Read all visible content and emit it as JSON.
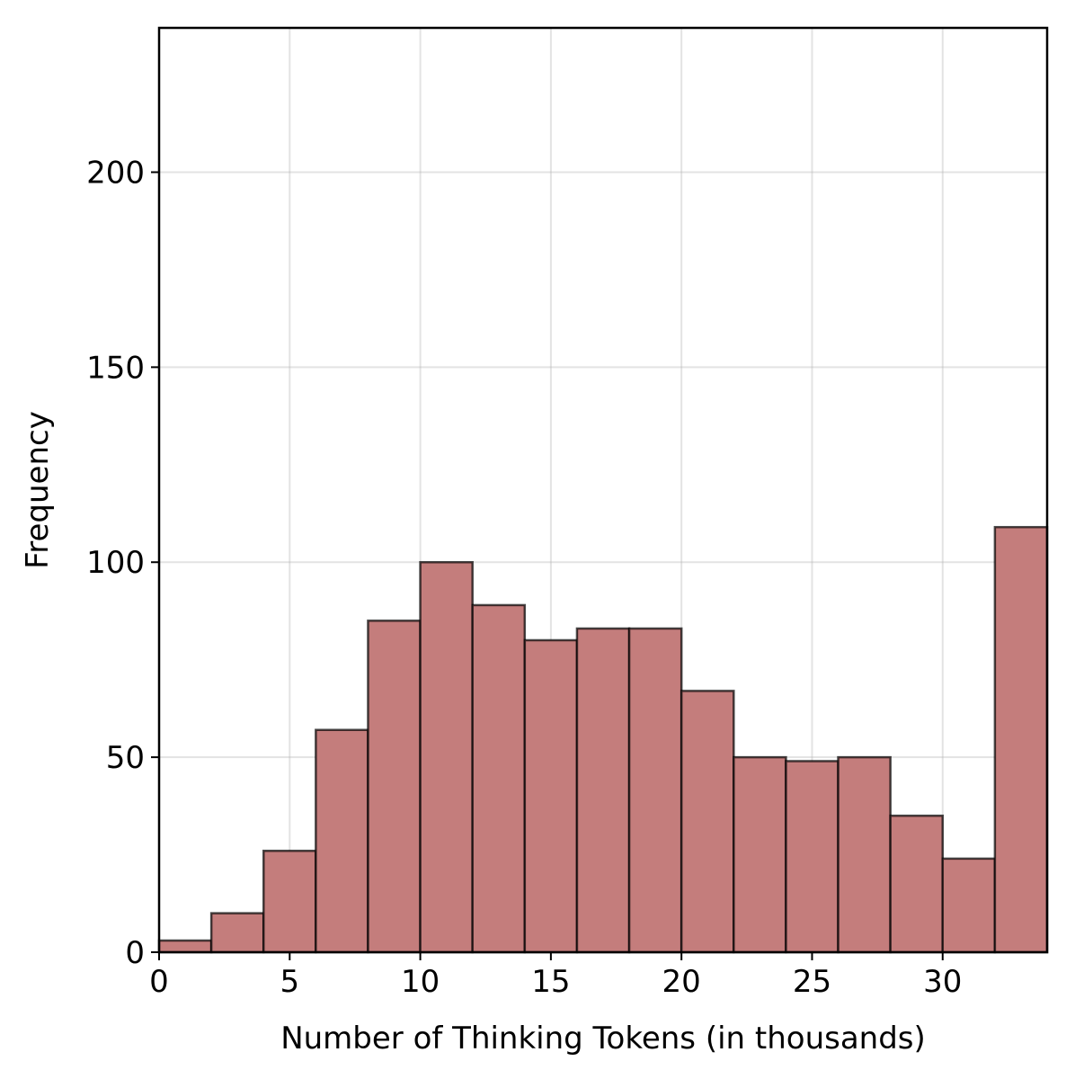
{
  "chart_data": {
    "type": "bar",
    "histogram": true,
    "bin_width": 2,
    "bin_starts": [
      0,
      2,
      4,
      6,
      8,
      10,
      12,
      14,
      16,
      18,
      20,
      22,
      24,
      26,
      28,
      30,
      32
    ],
    "values": [
      3,
      10,
      26,
      57,
      85,
      100,
      89,
      80,
      83,
      83,
      67,
      50,
      49,
      50,
      35,
      24,
      109
    ],
    "xlabel": "Number of Thinking Tokens (in thousands)",
    "ylabel": "Frequency",
    "xlim": [
      0,
      34
    ],
    "ylim": [
      0,
      237
    ],
    "xticks": [
      0,
      5,
      10,
      15,
      20,
      25,
      30
    ],
    "yticks": [
      0,
      50,
      100,
      150,
      200
    ],
    "grid": true,
    "bar_color": "#c47d7c",
    "edge_color": "#000000"
  }
}
